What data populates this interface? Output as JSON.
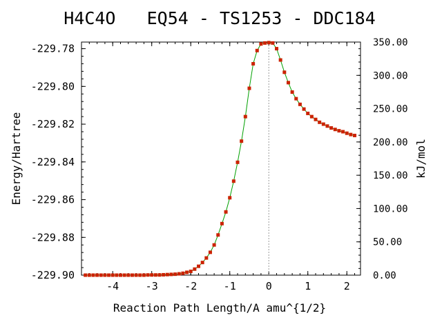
{
  "chart_data": {
    "type": "line",
    "title": "H4C4O   EQ54 - TS1253 - DDC184",
    "xlabel": "Reaction Path Length/A amu^{1/2}",
    "ylabel": "Energy/Hartree",
    "y2label": "kJ/mol",
    "xlim": [
      -4.8,
      2.35
    ],
    "ylim": [
      -229.9,
      -229.7765
    ],
    "y2lim": [
      0,
      350
    ],
    "x_ticks": [
      "-4",
      "-3",
      "-2",
      "-1",
      "0",
      "1",
      "2"
    ],
    "y_ticks": [
      "-229.78",
      "-229.80",
      "-229.82",
      "-229.84",
      "-229.86",
      "-229.88",
      "-229.90"
    ],
    "y2_ticks": [
      "350.00",
      "300.00",
      "250.00",
      "200.00",
      "150.00",
      "100.00",
      "50.00",
      "0.00"
    ],
    "ts_marker_x": 0,
    "colors": {
      "line": "#00a000",
      "points": "#cc2200",
      "ts_line": "#999999"
    },
    "series": [
      {
        "x": [
          -4.7,
          -4.6,
          -4.5,
          -4.4,
          -4.3,
          -4.2,
          -4.1,
          -4.0,
          -3.9,
          -3.8,
          -3.7,
          -3.6,
          -3.5,
          -3.4,
          -3.3,
          -3.2,
          -3.1,
          -3.0,
          -2.9,
          -2.8,
          -2.7,
          -2.6,
          -2.5,
          -2.4,
          -2.3,
          -2.2,
          -2.1,
          -2.0,
          -1.9,
          -1.8,
          -1.7,
          -1.6,
          -1.5,
          -1.4,
          -1.3,
          -1.2,
          -1.1,
          -1.0,
          -0.9,
          -0.8,
          -0.7,
          -0.6,
          -0.5,
          -0.4,
          -0.3,
          -0.2,
          -0.1,
          0.0,
          0.1,
          0.2,
          0.3,
          0.4,
          0.5,
          0.6,
          0.7,
          0.8,
          0.9,
          1.0,
          1.1,
          1.2,
          1.3,
          1.4,
          1.5,
          1.6,
          1.7,
          1.8,
          1.9,
          2.0,
          2.1,
          2.2
        ],
        "y": [
          -229.9,
          -229.9,
          -229.9,
          -229.9,
          -229.9,
          -229.9,
          -229.9,
          -229.9,
          -229.9,
          -229.9,
          -229.9,
          -229.9,
          -229.9,
          -229.9,
          -229.9,
          -229.9,
          -229.8999,
          -229.8999,
          -229.8999,
          -229.8999,
          -229.8998,
          -229.8997,
          -229.8996,
          -229.8995,
          -229.8993,
          -229.899,
          -229.8985,
          -229.898,
          -229.8968,
          -229.8953,
          -229.8933,
          -229.8909,
          -229.8879,
          -229.884,
          -229.8787,
          -229.8727,
          -229.8665,
          -229.859,
          -229.8502,
          -229.8402,
          -229.829,
          -229.816,
          -229.801,
          -229.788,
          -229.781,
          -229.7775,
          -229.777,
          -229.7768,
          -229.777,
          -229.78,
          -229.786,
          -229.7925,
          -229.798,
          -229.803,
          -229.8065,
          -229.8095,
          -229.812,
          -229.8143,
          -229.816,
          -229.8175,
          -229.819,
          -229.82,
          -229.821,
          -229.822,
          -229.8228,
          -229.8235,
          -229.824,
          -229.8248,
          -229.8255,
          -229.826
        ]
      }
    ]
  }
}
